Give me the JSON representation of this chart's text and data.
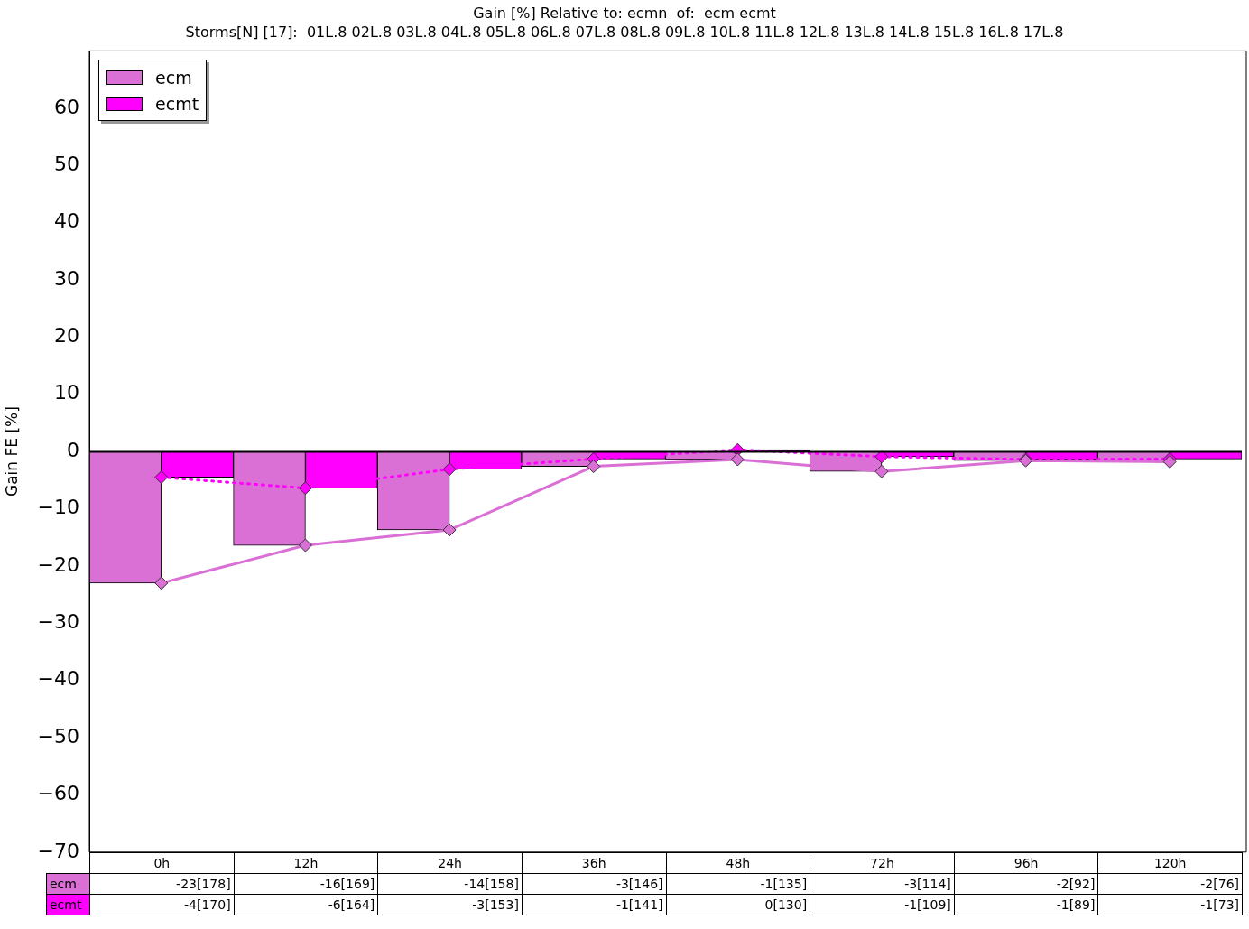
{
  "chart_data": {
    "type": "bar",
    "title": "Gain [%] Relative to: ecmn  of:  ecm ecmt",
    "subtitle": "Storms[N] [17]:  01L.8 02L.8 03L.8 04L.8 05L.8 06L.8 07L.8 08L.8 09L.8 10L.8 11L.8 12L.8 13L.8 14L.8 15L.8 16L.8 17L.8",
    "ylabel": "Gain FE [%]",
    "categories": [
      "0h",
      "12h",
      "24h",
      "36h",
      "48h",
      "72h",
      "96h",
      "120h"
    ],
    "series": [
      {
        "name": "ecm",
        "color": "#da70d6",
        "values": [
          -23.0,
          -16.4,
          -13.7,
          -2.6,
          -1.4,
          -3.5,
          -1.6,
          -1.8
        ],
        "value_labels": [
          "-23[178]",
          "-16[169]",
          "-14[158]",
          "-3[146]",
          "-1[135]",
          "-3[114]",
          "-2[92]",
          "-2[76]"
        ]
      },
      {
        "name": "ecmt",
        "color": "#ff00ff",
        "values": [
          -4.5,
          -6.4,
          -3.1,
          -1.3,
          0.3,
          -0.9,
          -1.4,
          -1.3
        ],
        "value_labels": [
          "-4[170]",
          "-6[164]",
          "-3[153]",
          "-1[141]",
          "0[130]",
          "-1[109]",
          "-1[89]",
          "-1[73]"
        ]
      },
      {
        "type": "line",
        "color": "#da70d6",
        "line_style": "solid",
        "marker": "diamond",
        "values": [
          -23.0,
          -16.4,
          -13.7,
          -2.6,
          -1.4,
          -3.5,
          -1.6,
          -1.8
        ]
      },
      {
        "type": "line",
        "color": "#ff00ff",
        "line_style": "dotted",
        "marker": "diamond",
        "values": [
          -4.5,
          -6.4,
          -3.1,
          -1.3,
          0.3,
          -0.9,
          -1.4,
          -1.3
        ]
      }
    ],
    "ylim": [
      -70,
      70
    ],
    "yticks": [
      -70,
      -60,
      -50,
      -40,
      -30,
      -20,
      -10,
      0,
      10,
      20,
      30,
      40,
      50,
      60
    ],
    "ref_lines": [
      {
        "axis": "y",
        "value": 0,
        "color": "#000000"
      }
    ],
    "grid": false,
    "legend": "top left"
  }
}
